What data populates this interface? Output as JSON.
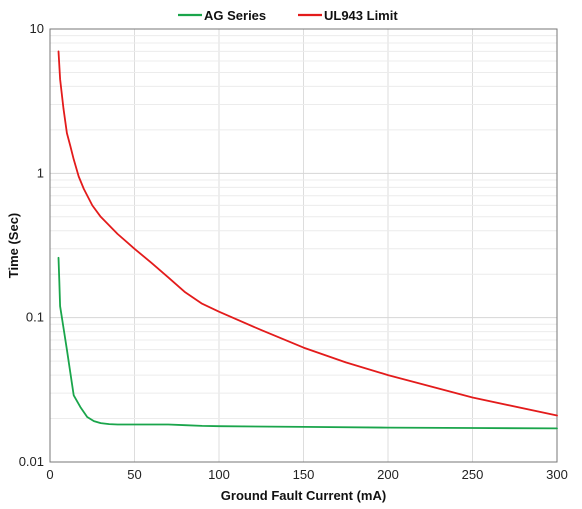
{
  "chart_data": {
    "type": "line",
    "title": "",
    "xlabel": "Ground Fault Current (mA)",
    "ylabel": "Time (Sec)",
    "xlim": [
      0,
      300
    ],
    "ylim": [
      0.01,
      10
    ],
    "yscale": "log",
    "grid": true,
    "legend_position": "top-center",
    "xticks": [
      0,
      50,
      100,
      150,
      200,
      250,
      300
    ],
    "xtick_labels": [
      "0",
      "50",
      "100",
      "150",
      "200",
      "250",
      "300"
    ],
    "yticks": [
      0.01,
      0.1,
      1,
      10
    ],
    "ytick_labels": [
      "0.01",
      "0.1",
      "1",
      "10"
    ],
    "series": [
      {
        "name": "AG Series",
        "color": "#1aa54b",
        "x": [
          5,
          5.5,
          6,
          8,
          10,
          14,
          18,
          22,
          26,
          30,
          35,
          40,
          50,
          60,
          70,
          80,
          90,
          100,
          150,
          200,
          250,
          300
        ],
        "y": [
          0.26,
          0.18,
          0.12,
          0.085,
          0.06,
          0.029,
          0.024,
          0.0205,
          0.0192,
          0.0186,
          0.0183,
          0.0182,
          0.0182,
          0.0182,
          0.0182,
          0.018,
          0.0178,
          0.0177,
          0.0175,
          0.0173,
          0.0172,
          0.0171
        ]
      },
      {
        "name": "UL943 Limit",
        "color": "#e31b1b",
        "x": [
          5,
          6,
          8,
          10,
          12,
          14,
          17,
          20,
          25,
          30,
          40,
          50,
          60,
          70,
          80,
          90,
          100,
          125,
          150,
          175,
          200,
          250,
          300
        ],
        "y": [
          7,
          4.5,
          2.8,
          1.9,
          1.55,
          1.25,
          0.95,
          0.78,
          0.6,
          0.5,
          0.38,
          0.3,
          0.24,
          0.19,
          0.15,
          0.125,
          0.11,
          0.082,
          0.062,
          0.049,
          0.04,
          0.028,
          0.021
        ]
      }
    ]
  }
}
